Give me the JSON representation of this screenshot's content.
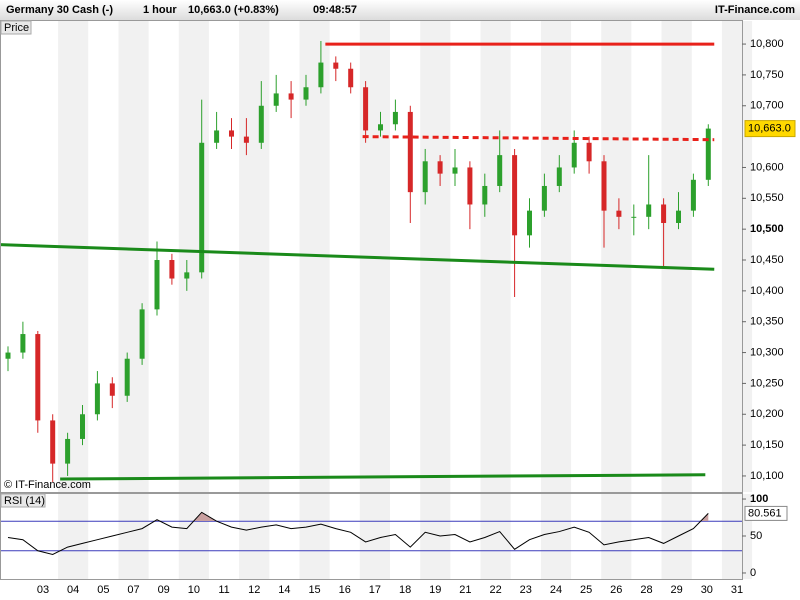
{
  "header": {
    "instrument": "Germany 30 Cash (-)",
    "interval": "1 hour",
    "quote": "10,663.0 (+0.83%)",
    "time": "09:48:57",
    "brand": "IT-Finance.com"
  },
  "x_axis_labels": [
    "03",
    "04",
    "05",
    "07",
    "09",
    "10",
    "11",
    "12",
    "14",
    "15",
    "16",
    "17",
    "18",
    "19",
    "21",
    "22",
    "23",
    "24",
    "25",
    "26",
    "28",
    "29",
    "30",
    "31"
  ],
  "chart_data": [
    {
      "type": "candlestick",
      "title": "Price",
      "watermark": "© IT-Finance.com",
      "up_color": "#2ca02c",
      "down_color": "#d62728",
      "ylim": [
        10074,
        10839
      ],
      "yticks": [
        {
          "value": 10100,
          "label": "10,100"
        },
        {
          "value": 10150,
          "label": "10,150"
        },
        {
          "value": 10200,
          "label": "10,200"
        },
        {
          "value": 10250,
          "label": "10,250"
        },
        {
          "value": 10300,
          "label": "10,300"
        },
        {
          "value": 10350,
          "label": "10,350"
        },
        {
          "value": 10400,
          "label": "10,400"
        },
        {
          "value": 10450,
          "label": "10,450"
        },
        {
          "value": 10500,
          "label": "10,500",
          "bold": true
        },
        {
          "value": 10550,
          "label": "10,550"
        },
        {
          "value": 10600,
          "label": "10,600"
        },
        {
          "value": 10700,
          "label": "10,700"
        },
        {
          "value": 10750,
          "label": "10,750"
        },
        {
          "value": 10800,
          "label": "10,800"
        }
      ],
      "last_price": {
        "value": 10663,
        "label": "10,663.0"
      },
      "ohlc": [
        [
          10290,
          10310,
          10270,
          10300
        ],
        [
          10300,
          10350,
          10290,
          10330
        ],
        [
          10330,
          10335,
          10170,
          10190
        ],
        [
          10190,
          10200,
          10090,
          10120
        ],
        [
          10120,
          10170,
          10100,
          10160
        ],
        [
          10160,
          10215,
          10150,
          10200
        ],
        [
          10200,
          10270,
          10190,
          10250
        ],
        [
          10250,
          10260,
          10210,
          10230
        ],
        [
          10230,
          10300,
          10220,
          10290
        ],
        [
          10290,
          10380,
          10280,
          10370
        ],
        [
          10370,
          10480,
          10360,
          10450
        ],
        [
          10450,
          10460,
          10410,
          10420
        ],
        [
          10420,
          10450,
          10400,
          10430
        ],
        [
          10430,
          10710,
          10420,
          10640
        ],
        [
          10640,
          10690,
          10630,
          10660
        ],
        [
          10660,
          10680,
          10630,
          10650
        ],
        [
          10650,
          10680,
          10620,
          10640
        ],
        [
          10640,
          10740,
          10630,
          10700
        ],
        [
          10700,
          10750,
          10690,
          10720
        ],
        [
          10720,
          10740,
          10680,
          10710
        ],
        [
          10710,
          10750,
          10700,
          10730
        ],
        [
          10730,
          10805,
          10720,
          10770
        ],
        [
          10770,
          10780,
          10740,
          10760
        ],
        [
          10760,
          10770,
          10720,
          10730
        ],
        [
          10730,
          10740,
          10640,
          10660
        ],
        [
          10660,
          10690,
          10650,
          10670
        ],
        [
          10670,
          10710,
          10660,
          10690
        ],
        [
          10690,
          10700,
          10510,
          10560
        ],
        [
          10560,
          10630,
          10540,
          10610
        ],
        [
          10610,
          10620,
          10570,
          10590
        ],
        [
          10590,
          10630,
          10570,
          10600
        ],
        [
          10600,
          10610,
          10500,
          10540
        ],
        [
          10540,
          10590,
          10520,
          10570
        ],
        [
          10570,
          10660,
          10560,
          10620
        ],
        [
          10620,
          10630,
          10390,
          10490
        ],
        [
          10490,
          10550,
          10470,
          10530
        ],
        [
          10530,
          10590,
          10520,
          10570
        ],
        [
          10570,
          10620,
          10560,
          10600
        ],
        [
          10600,
          10660,
          10590,
          10640
        ],
        [
          10640,
          10650,
          10590,
          10610
        ],
        [
          10610,
          10620,
          10470,
          10530
        ],
        [
          10530,
          10550,
          10500,
          10520
        ],
        [
          10520,
          10540,
          10490,
          10520
        ],
        [
          10520,
          10620,
          10500,
          10540
        ],
        [
          10540,
          10550,
          10440,
          10510
        ],
        [
          10510,
          10560,
          10500,
          10530
        ],
        [
          10530,
          10590,
          10520,
          10580
        ],
        [
          10580,
          10670,
          10570,
          10663
        ]
      ],
      "lines": [
        {
          "color": "#e8211a",
          "dashed": false,
          "x": [
            21.3,
            47.4
          ],
          "y": [
            10800,
            10800
          ]
        },
        {
          "color": "#e8211a",
          "dashed": true,
          "x": [
            23.8,
            47.4
          ],
          "y": [
            10650,
            10645
          ]
        },
        {
          "color": "#1a8a1a",
          "dashed": false,
          "x": [
            -0.54,
            47.4
          ],
          "y": [
            10475,
            10435
          ]
        },
        {
          "color": "#1a8a1a",
          "dashed": false,
          "x": [
            3.5,
            46.8
          ],
          "y": [
            10095,
            10102
          ]
        }
      ]
    },
    {
      "type": "line",
      "title": "RSI (14)",
      "color": "#000000",
      "fill_color": "#c9a0a0",
      "ylim": [
        -9.5,
        106.8
      ],
      "yticks": [
        0,
        50,
        {
          "value": 100,
          "label": "100",
          "bold": true
        }
      ],
      "levels": [
        70,
        30
      ],
      "values": [
        48,
        45,
        30,
        25,
        35,
        40,
        45,
        50,
        55,
        60,
        72,
        62,
        60,
        82,
        70,
        62,
        58,
        62,
        65,
        60,
        62,
        66,
        60,
        55,
        42,
        48,
        52,
        35,
        55,
        50,
        52,
        42,
        48,
        56,
        32,
        45,
        52,
        56,
        62,
        55,
        38,
        42,
        45,
        48,
        40,
        50,
        60,
        80.561
      ],
      "value_label": "80.561"
    }
  ]
}
